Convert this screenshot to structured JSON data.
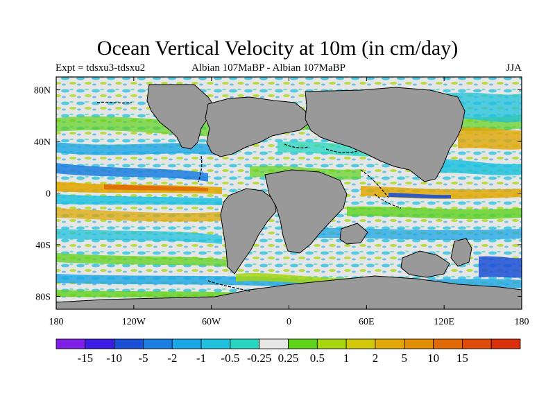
{
  "title": "Ocean Vertical Velocity at 10m (in cm/day)",
  "subtitle": {
    "left": "Expt = tdsxu3-tdsxu2",
    "center": "Albian   107MaBP - Albian   107MaBP",
    "right": "JJA"
  },
  "axes": {
    "x_ticks": [
      {
        "lon": -180,
        "label": "180"
      },
      {
        "lon": -120,
        "label": "120W"
      },
      {
        "lon": -60,
        "label": "60W"
      },
      {
        "lon": 0,
        "label": "0"
      },
      {
        "lon": 60,
        "label": "60E"
      },
      {
        "lon": 120,
        "label": "120E"
      },
      {
        "lon": 180,
        "label": "180"
      }
    ],
    "y_ticks": [
      {
        "lat": 80,
        "label": "80N"
      },
      {
        "lat": 40,
        "label": "40N"
      },
      {
        "lat": 0,
        "label": "0"
      },
      {
        "lat": -40,
        "label": "40S"
      },
      {
        "lat": -80,
        "label": "80S"
      }
    ],
    "lon_range": [
      -180,
      180
    ],
    "lat_range": [
      -90,
      90
    ]
  },
  "colorbar": {
    "colors": [
      "#7f1fe6",
      "#3d1ee6",
      "#1b4fd6",
      "#1b7ee0",
      "#1aa6e6",
      "#1fc1de",
      "#28d6c0",
      "#e6e6e6",
      "#5fd21c",
      "#a6d60e",
      "#d2c80a",
      "#e2a807",
      "#e28e05",
      "#e06a06",
      "#e04a0a",
      "#d8300a"
    ],
    "labels": [
      "-15",
      "-10",
      "-5",
      "-2",
      "-1",
      "-0.5",
      "-0.25",
      "0.25",
      "0.5",
      "1",
      "2",
      "5",
      "10",
      "15"
    ]
  },
  "palette": {
    "land": "#999999",
    "ocean_background": "#e6e6e6"
  }
}
